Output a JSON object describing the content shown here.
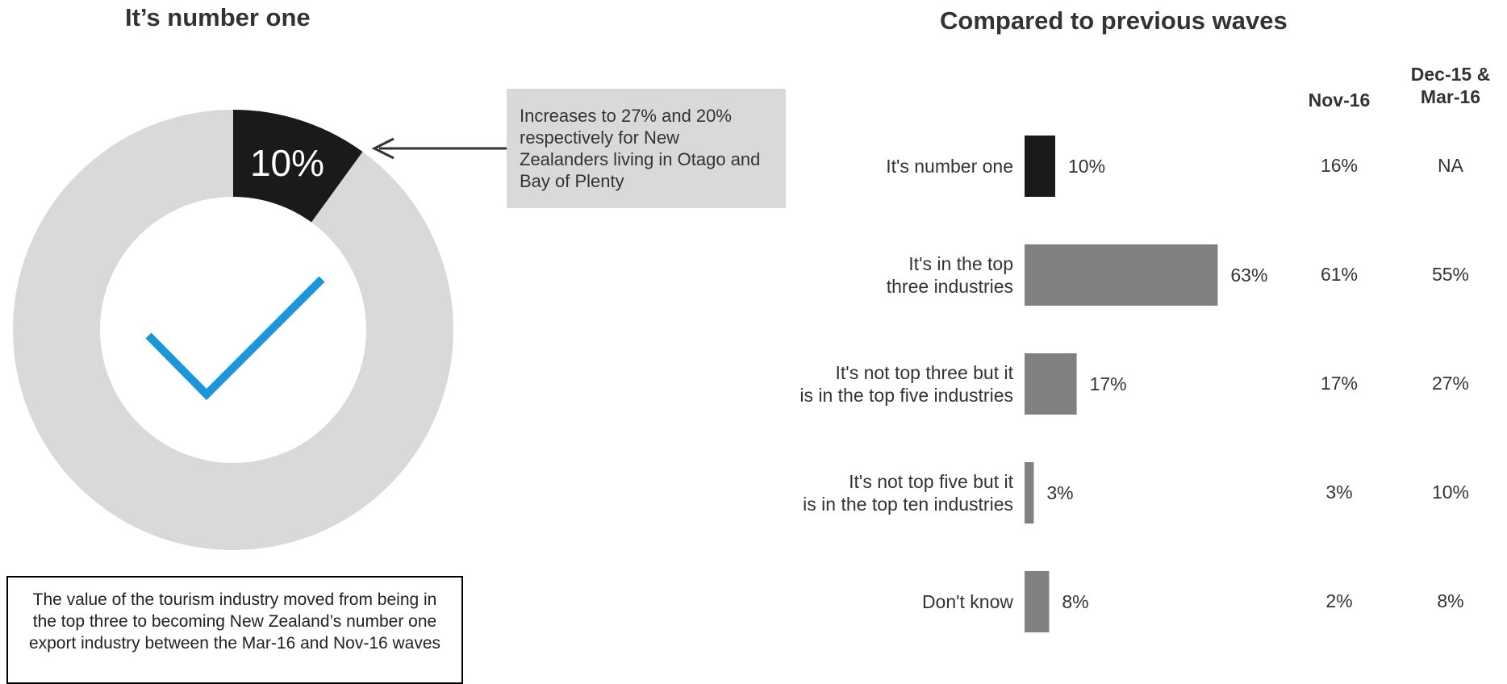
{
  "left": {
    "title": "It’s number one",
    "highlight_value": 10,
    "highlight_label": "10%",
    "callout": "Increases to 27% and 20% respectively for New Zealanders living in Otago and Bay of Plenty",
    "footnote": "The value of the tourism industry moved from being in the top three to becoming New Zealand’s number one export industry between the Mar-16 and Nov-16 waves",
    "icon": "checkmark-icon"
  },
  "right": {
    "title": "Compared to previous waves",
    "columns": [
      "Nov-16",
      "Dec-15 & Mar-16"
    ]
  },
  "colors": {
    "highlight": "#1a1a1a",
    "bar": "#808080",
    "ring": "#d9d9d9",
    "check": "#1b96d8"
  },
  "chart_data": [
    {
      "type": "pie",
      "title": "It’s number one",
      "values": [
        10,
        90
      ]
    },
    {
      "type": "bar",
      "orientation": "horizontal",
      "title": "Compared to previous waves",
      "categories": [
        "It's number one",
        "It's in the top three industries",
        "It's not top three but it is in the top five industries",
        "It's not top five but it is in the top ten industries",
        "Don't know"
      ],
      "category_lines": [
        [
          "It's number one"
        ],
        [
          "It's in the top",
          "three industries"
        ],
        [
          "It's not top three but it",
          "is in the top five industries"
        ],
        [
          "It's not top five but it",
          "is in the top ten industries"
        ],
        [
          "Don't know"
        ]
      ],
      "values": [
        10,
        63,
        17,
        3,
        8
      ],
      "value_labels": [
        "10%",
        "63%",
        "17%",
        "3%",
        "8%"
      ],
      "xlim": [
        0,
        100
      ],
      "comparison": [
        {
          "name": "Nov-16",
          "values": [
            "16%",
            "61%",
            "17%",
            "3%",
            "2%"
          ]
        },
        {
          "name": "Dec-15 & Mar-16",
          "values": [
            "NA",
            "55%",
            "27%",
            "10%",
            "8%"
          ]
        }
      ]
    }
  ]
}
